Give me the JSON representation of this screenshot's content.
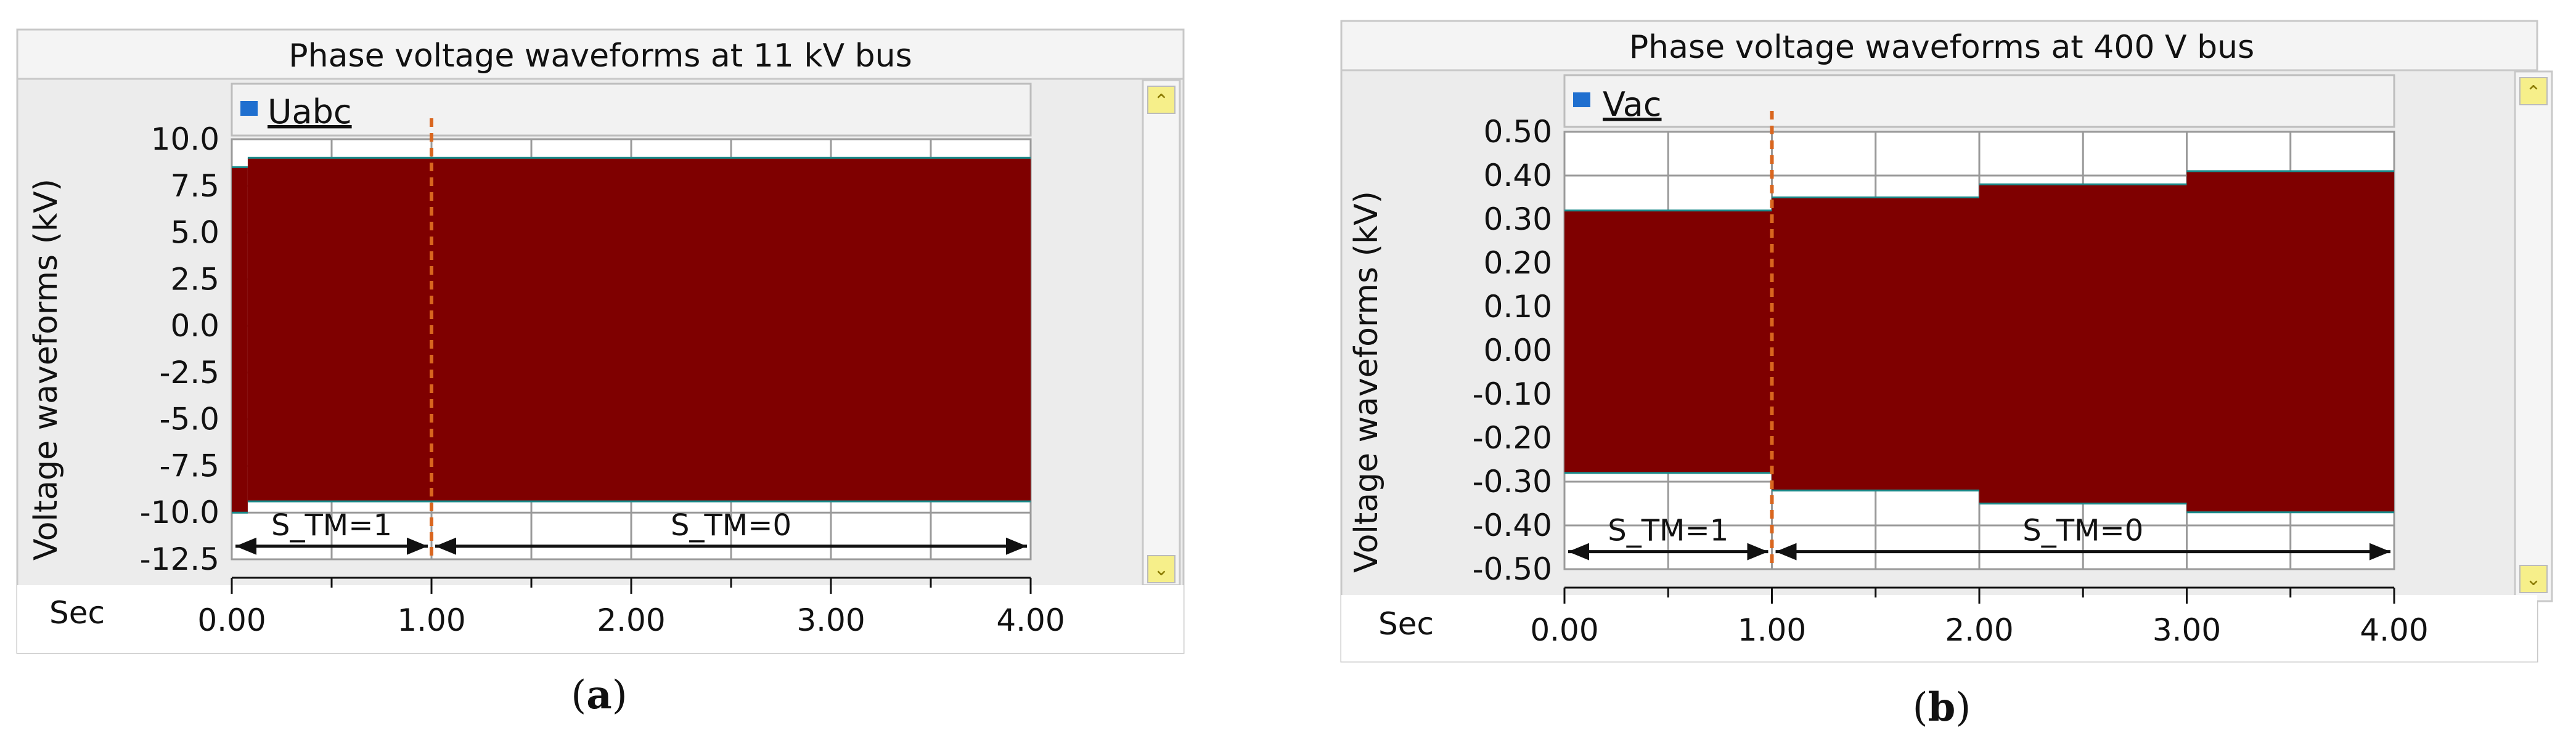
{
  "colors": {
    "waveform": "#7f0000",
    "edge": "#1a8a8a",
    "marker": "#d9661f",
    "legend": "#1f6fcf",
    "panel": "#ececec"
  },
  "x_unit_label": "Sec",
  "chart_data": [
    {
      "type": "line",
      "title": "Phase voltage waveforms at 11 kV bus",
      "xlabel": "Sec",
      "ylabel": "Voltage waveforms (kV)",
      "xlim": [
        0,
        4
      ],
      "ylim": [
        -12.5,
        10
      ],
      "xticks": [
        "0.00",
        "1.00",
        "2.00",
        "3.00",
        "4.00"
      ],
      "yticks": [
        "10.0",
        "7.5",
        "5.0",
        "2.5",
        "0.0",
        "-2.5",
        "-5.0",
        "-7.5",
        "-10.0",
        "-12.5"
      ],
      "ytick_values": [
        10,
        7.5,
        5,
        2.5,
        0,
        -2.5,
        -5,
        -7.5,
        -10,
        -12.5
      ],
      "grid": true,
      "legend": "top-left",
      "series": [
        {
          "name": "Uabc",
          "envelope": [
            {
              "t0": 0.0,
              "t1": 0.08,
              "upper": 8.5,
              "lower": -10.0
            },
            {
              "t0": 0.08,
              "t1": 4.0,
              "upper": 9.0,
              "lower": -9.4
            }
          ]
        }
      ],
      "markers": [
        {
          "x": 1.0,
          "style": "dashed"
        }
      ],
      "annotations": [
        {
          "label": "S_TM=1",
          "x0": 0.0,
          "x1": 1.0,
          "y": -11.8
        },
        {
          "label": "S_TM=0",
          "x0": 1.0,
          "x1": 4.0,
          "y": -11.8
        }
      ],
      "caption_letter": "a"
    },
    {
      "type": "line",
      "title": "Phase voltage waveforms at 400 V bus",
      "xlabel": "Sec",
      "ylabel": "Voltage waveforms (kV)",
      "xlim": [
        0,
        4
      ],
      "ylim": [
        -0.5,
        0.5
      ],
      "xticks": [
        "0.00",
        "1.00",
        "2.00",
        "3.00",
        "4.00"
      ],
      "yticks": [
        "0.50",
        "0.40",
        "0.30",
        "0.20",
        "0.10",
        "0.00",
        "-0.10",
        "-0.20",
        "-0.30",
        "-0.40",
        "-0.50"
      ],
      "ytick_values": [
        0.5,
        0.4,
        0.3,
        0.2,
        0.1,
        0,
        -0.1,
        -0.2,
        -0.3,
        -0.4,
        -0.5
      ],
      "grid": true,
      "legend": "top-left",
      "series": [
        {
          "name": "Vac",
          "envelope": [
            {
              "t0": 0.0,
              "t1": 1.0,
              "upper": 0.32,
              "lower": -0.28
            },
            {
              "t0": 1.0,
              "t1": 2.0,
              "upper": 0.35,
              "lower": -0.32
            },
            {
              "t0": 2.0,
              "t1": 3.0,
              "upper": 0.38,
              "lower": -0.35
            },
            {
              "t0": 3.0,
              "t1": 4.0,
              "upper": 0.41,
              "lower": -0.37
            }
          ]
        }
      ],
      "markers": [
        {
          "x": 1.0,
          "style": "dashed"
        }
      ],
      "annotations": [
        {
          "label": "S_TM=1",
          "x0": 0.0,
          "x1": 1.0,
          "y": -0.46
        },
        {
          "label": "S_TM=0",
          "x0": 1.0,
          "x1": 4.0,
          "y": -0.46
        }
      ],
      "caption_letter": "b"
    }
  ]
}
